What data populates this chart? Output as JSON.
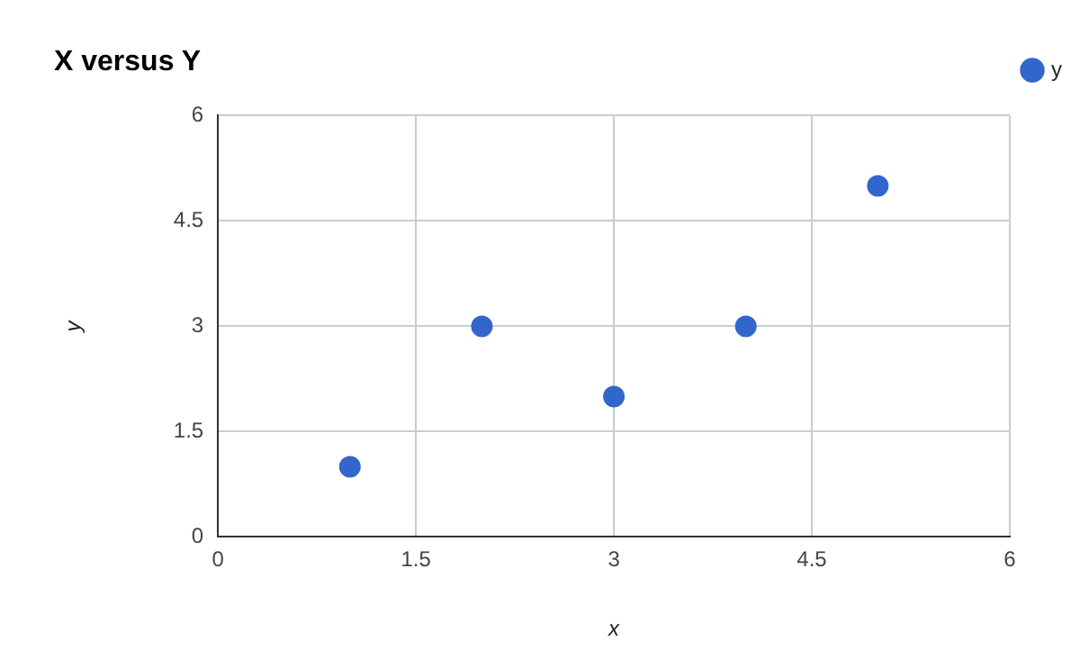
{
  "chart_data": {
    "type": "scatter",
    "title": "X versus Y",
    "xlabel": "x",
    "ylabel": "y",
    "x": [
      1,
      2,
      3,
      4,
      5
    ],
    "series": [
      {
        "name": "y",
        "color": "#3366cc",
        "values": [
          1,
          3,
          2,
          3,
          5
        ]
      }
    ],
    "xlim": [
      0,
      6
    ],
    "xticks": [
      0,
      1.5,
      3,
      4.5,
      6
    ],
    "ylim": [
      0,
      6
    ],
    "yticks": [
      0,
      1.5,
      3,
      4.5,
      6
    ],
    "grid": true,
    "legend": "top right",
    "marker": "circle"
  }
}
